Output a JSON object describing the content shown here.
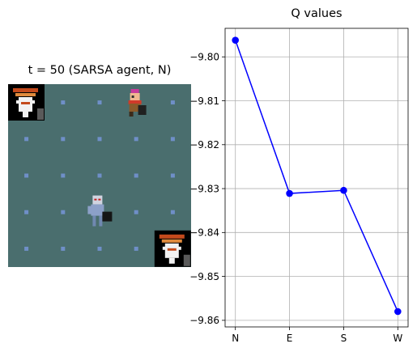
{
  "left_panel": {
    "title": "t = 50 (SARSA agent, N)",
    "floor_color": "#4a6e6e",
    "dot_color": "#6f8fc8",
    "sprites": [
      {
        "name": "goal-totem-icon",
        "col": 0,
        "row": 0
      },
      {
        "name": "hero-sprite-icon",
        "col": 3,
        "row": 0
      },
      {
        "name": "agent-sprite-icon",
        "col": 2,
        "row": 3
      },
      {
        "name": "goal-totem-icon",
        "col": 4,
        "row": 4
      }
    ],
    "grid_size": 5
  },
  "chart_data": {
    "type": "line",
    "title": "Q values",
    "categories": [
      "N",
      "E",
      "S",
      "W"
    ],
    "series": [
      {
        "values": [
          -9.7962,
          -9.8311,
          -9.8304,
          -9.858
        ],
        "color": "#0000ff"
      }
    ],
    "ylim": [
      -9.8615,
      -9.7935
    ],
    "yticks": [
      -9.8,
      -9.81,
      -9.82,
      -9.83,
      -9.84,
      -9.85,
      -9.86
    ],
    "ytick_labels": [
      "−9.80",
      "−9.81",
      "−9.82",
      "−9.83",
      "−9.84",
      "−9.85",
      "−9.86"
    ],
    "grid": true
  }
}
